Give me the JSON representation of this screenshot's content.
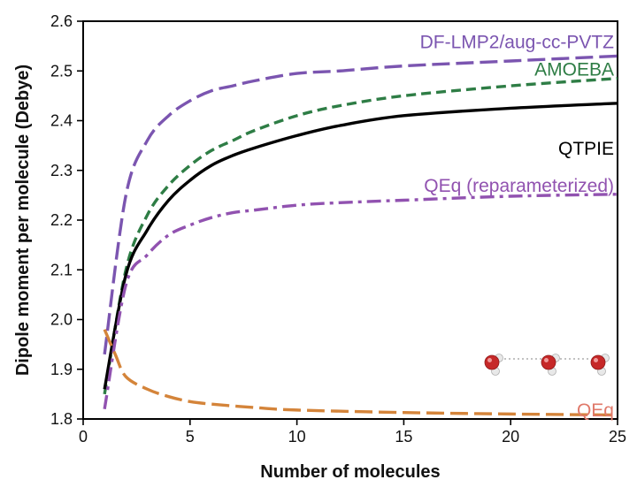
{
  "chart_data": {
    "type": "line",
    "xlabel": "Number of molecules",
    "ylabel": "Dipole moment per molecule (Debye)",
    "xlim": [
      0,
      25
    ],
    "ylim": [
      1.8,
      2.6
    ],
    "x_ticks": [
      0,
      5,
      10,
      15,
      20,
      25
    ],
    "y_ticks": [
      1.8,
      1.9,
      2.0,
      2.1,
      2.2,
      2.3,
      2.4,
      2.5,
      2.6
    ],
    "grid": false,
    "series": [
      {
        "name": "DF-LMP2/aug-cc-PVTZ",
        "color": "#7b55b0",
        "style": "longdash",
        "label_at": [
          25,
          2.558
        ],
        "x": [
          1,
          2,
          3,
          4,
          5,
          6,
          7,
          8,
          10,
          12,
          15,
          20,
          25
        ],
        "y": [
          1.93,
          2.25,
          2.36,
          2.41,
          2.44,
          2.46,
          2.47,
          2.48,
          2.495,
          2.5,
          2.51,
          2.52,
          2.53
        ]
      },
      {
        "name": "AMOEBA",
        "color": "#2e7d45",
        "style": "dash",
        "label_at": [
          25,
          2.503
        ],
        "x": [
          1,
          2,
          3,
          4,
          5,
          6,
          7,
          8,
          10,
          12,
          15,
          20,
          25
        ],
        "y": [
          1.85,
          2.1,
          2.21,
          2.27,
          2.31,
          2.34,
          2.36,
          2.38,
          2.41,
          2.43,
          2.45,
          2.47,
          2.485
        ]
      },
      {
        "name": "QTPIE",
        "color": "#000000",
        "style": "solid",
        "label_at": [
          25,
          2.344
        ],
        "x": [
          1,
          2,
          3,
          4,
          5,
          6,
          7,
          8,
          10,
          12,
          15,
          20,
          25
        ],
        "y": [
          1.86,
          2.09,
          2.18,
          2.24,
          2.28,
          2.31,
          2.33,
          2.345,
          2.37,
          2.39,
          2.41,
          2.425,
          2.435
        ]
      },
      {
        "name": "QEq (reparameterized)",
        "color": "#9152b0",
        "style": "dashdot",
        "label_at": [
          25,
          2.269
        ],
        "x": [
          1,
          2,
          3,
          4,
          5,
          6,
          7,
          8,
          10,
          12,
          15,
          20,
          25
        ],
        "y": [
          1.82,
          2.07,
          2.13,
          2.17,
          2.19,
          2.205,
          2.215,
          2.22,
          2.23,
          2.235,
          2.24,
          2.248,
          2.252
        ]
      },
      {
        "name": "QEq",
        "color": "#d4843a",
        "style": "longdash",
        "label_at": [
          25,
          1.818
        ],
        "label_color": "#e0796a",
        "x": [
          1,
          1.5,
          2,
          3,
          4,
          5,
          6,
          8,
          10,
          15,
          20,
          25
        ],
        "y": [
          1.98,
          1.93,
          1.885,
          1.86,
          1.845,
          1.835,
          1.83,
          1.823,
          1.818,
          1.813,
          1.81,
          1.808
        ]
      }
    ]
  },
  "colors": {
    "oxygen": "#c62828",
    "hydrogen": "#e8e8e8"
  },
  "icons": [
    "water-molecule-icon",
    "water-molecule-icon",
    "water-molecule-icon"
  ]
}
